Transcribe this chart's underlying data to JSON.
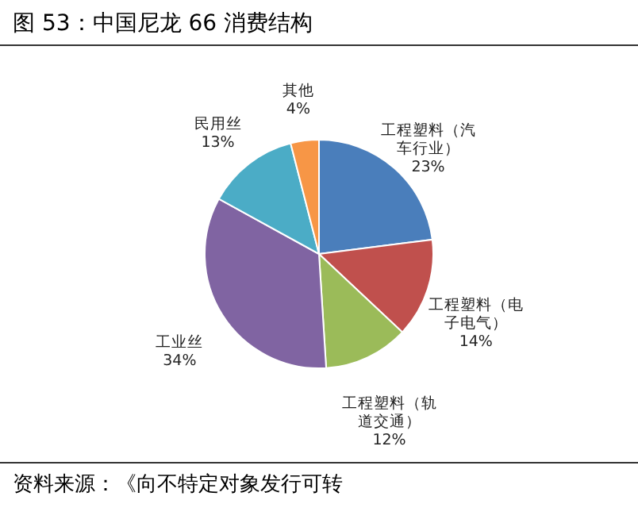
{
  "chart_data": {
    "type": "pie",
    "title": "图 53：中国尼龙 66 消费结构",
    "categories": [
      "工程塑料（汽车行业）",
      "工程塑料（电子电气）",
      "工程塑料（轨道交通）",
      "工业丝",
      "民用丝",
      "其他"
    ],
    "values": [
      23,
      14,
      12,
      34,
      13,
      4
    ],
    "value_labels": [
      "23%",
      "14%",
      "12%",
      "34%",
      "13%",
      "4%"
    ],
    "colors": [
      "#4a7ebb",
      "#c0504d",
      "#9bbb59",
      "#8064a2",
      "#4bacc6",
      "#f79646"
    ],
    "annotations": [
      "资料来源：《向不特定对象发行可转"
    ]
  }
}
